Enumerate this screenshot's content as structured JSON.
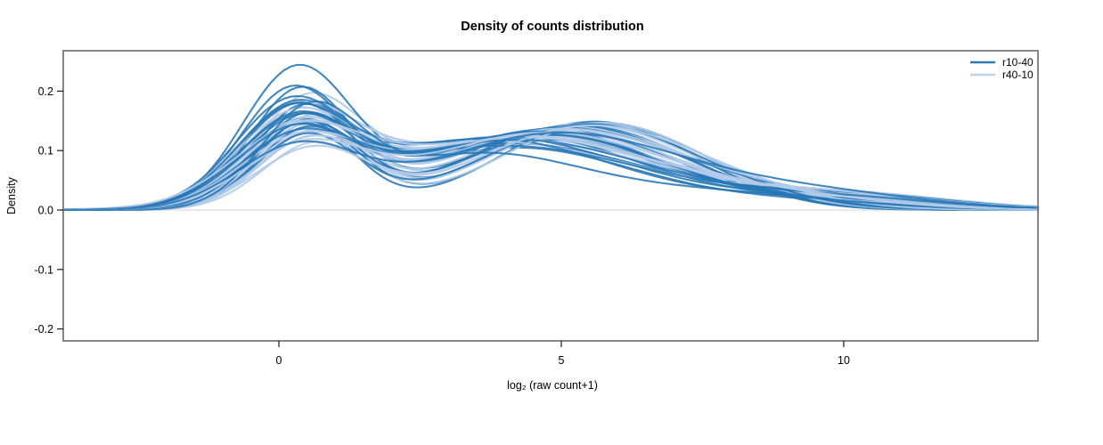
{
  "chart_data": {
    "type": "line",
    "subtype": "density-overlay",
    "title": "Density of counts distribution",
    "xlabel": "log2 (raw count+1)",
    "xlabel_display": "log₂ (raw count+1)",
    "ylabel": "Density",
    "xlim": [
      -3.82,
      13.44
    ],
    "ylim": [
      -0.22,
      0.268
    ],
    "x_ticks": [
      0,
      5,
      10
    ],
    "y_ticks": [
      0.2,
      0.1,
      0.0,
      -0.1,
      -0.2
    ],
    "grid": false,
    "zero_line": true,
    "zero_line_color": "#dcdcdc",
    "box_color": "#737373",
    "legend": {
      "position": "top-right",
      "entries": [
        {
          "label": "r10-40",
          "color": "#2b7ab8"
        },
        {
          "label": "r40-10",
          "color": "#bdd2ec"
        }
      ]
    },
    "series": [
      {
        "name": "r10-40",
        "color": "#2878b6",
        "opacity": 0.88,
        "line_width": 2.1,
        "curve_model": "sum of 3 gaussians [h1,c1,s1,h2,c2,s2,h3,c3,s3]",
        "curves": [
          [
            0.222,
            0.3,
            0.95,
            0.105,
            4.2,
            2.2,
            0.012,
            9.2,
            1.5
          ],
          [
            0.198,
            0.38,
            0.9,
            0.118,
            4.9,
            2.0,
            0.01,
            8.8,
            1.4
          ],
          [
            0.19,
            0.22,
            0.92,
            0.125,
            4.3,
            2.1,
            0.015,
            9.0,
            1.6
          ],
          [
            0.172,
            0.45,
            0.88,
            0.132,
            5.1,
            1.9,
            0.008,
            8.5,
            1.3
          ],
          [
            0.166,
            0.28,
            1.0,
            0.128,
            4.6,
            2.2,
            0.018,
            9.4,
            1.7
          ],
          [
            0.161,
            0.52,
            0.93,
            0.14,
            5.4,
            1.8,
            0.006,
            8.2,
            1.2
          ],
          [
            0.157,
            0.18,
            0.97,
            0.122,
            3.9,
            2.3,
            0.02,
            9.6,
            1.8
          ],
          [
            0.153,
            0.4,
            0.9,
            0.148,
            5.6,
            1.7,
            0.005,
            8.0,
            1.2
          ],
          [
            0.15,
            0.33,
            1.05,
            0.135,
            4.7,
            2.0,
            0.012,
            9.1,
            1.5
          ],
          [
            0.148,
            0.25,
            0.94,
            0.112,
            4.1,
            2.4,
            0.022,
            9.8,
            1.9
          ],
          [
            0.146,
            0.48,
            0.89,
            0.142,
            5.2,
            1.9,
            0.009,
            8.6,
            1.4
          ],
          [
            0.143,
            0.36,
            1.02,
            0.13,
            4.5,
            2.1,
            0.014,
            9.3,
            1.6
          ],
          [
            0.141,
            0.2,
            0.96,
            0.12,
            3.7,
            2.3,
            0.018,
            9.5,
            1.7
          ],
          [
            0.139,
            0.55,
            0.91,
            0.146,
            5.7,
            1.8,
            0.006,
            8.3,
            1.3
          ],
          [
            0.136,
            0.3,
            1.08,
            0.126,
            4.8,
            2.0,
            0.011,
            9.0,
            1.5
          ],
          [
            0.133,
            0.42,
            0.93,
            0.138,
            5.0,
            2.2,
            0.016,
            9.7,
            1.8
          ],
          [
            0.129,
            0.27,
            0.98,
            0.108,
            4.0,
            2.5,
            0.025,
            10.0,
            1.9
          ],
          [
            0.125,
            0.5,
            0.9,
            0.144,
            5.5,
            1.9,
            0.007,
            8.4,
            1.3
          ],
          [
            0.119,
            0.35,
            1.04,
            0.132,
            4.6,
            2.1,
            0.013,
            9.2,
            1.6
          ],
          [
            0.113,
            0.23,
            0.99,
            0.118,
            4.2,
            2.4,
            0.02,
            9.9,
            1.8
          ],
          [
            0.158,
            0.55,
            0.88,
            0.09,
            3.5,
            1.8,
            0.03,
            7.5,
            2.2
          ],
          [
            0.1,
            0.32,
            1.06,
            0.128,
            4.9,
            2.2,
            0.028,
            9.4,
            2.0
          ]
        ]
      },
      {
        "name": "r40-10",
        "color": "#b3cbe8",
        "opacity": 0.92,
        "line_width": 2.1,
        "curve_model": "sum of 3 gaussians [h1,c1,s1,h2,c2,s2,h3,c3,s3]",
        "curves": [
          [
            0.168,
            0.5,
            0.95,
            0.118,
            4.4,
            2.3,
            0.02,
            9.0,
            1.8
          ],
          [
            0.16,
            0.35,
            1.0,
            0.13,
            4.9,
            2.1,
            0.015,
            8.7,
            1.6
          ],
          [
            0.155,
            0.6,
            0.92,
            0.142,
            5.3,
            1.9,
            0.01,
            8.4,
            1.4
          ],
          [
            0.15,
            0.28,
            1.05,
            0.125,
            4.2,
            2.4,
            0.024,
            9.5,
            1.9
          ],
          [
            0.147,
            0.45,
            0.97,
            0.136,
            5.0,
            2.0,
            0.012,
            8.9,
            1.5
          ],
          [
            0.144,
            0.55,
            0.9,
            0.148,
            5.5,
            1.8,
            0.008,
            8.2,
            1.3
          ],
          [
            0.14,
            0.3,
            1.02,
            0.12,
            4.0,
            2.5,
            0.026,
            9.8,
            2.0
          ],
          [
            0.137,
            0.48,
            0.94,
            0.14,
            5.2,
            2.0,
            0.011,
            8.6,
            1.5
          ],
          [
            0.134,
            0.38,
            1.08,
            0.128,
            4.6,
            2.2,
            0.017,
            9.2,
            1.7
          ],
          [
            0.131,
            0.62,
            0.91,
            0.145,
            5.6,
            1.9,
            0.007,
            8.1,
            1.3
          ],
          [
            0.128,
            0.25,
            1.0,
            0.115,
            3.8,
            2.5,
            0.028,
            9.9,
            2.0
          ],
          [
            0.126,
            0.52,
            0.96,
            0.138,
            5.1,
            2.1,
            0.013,
            8.8,
            1.6
          ],
          [
            0.123,
            0.4,
            1.06,
            0.126,
            4.5,
            2.3,
            0.019,
            9.4,
            1.8
          ],
          [
            0.12,
            0.58,
            0.93,
            0.143,
            5.4,
            1.9,
            0.009,
            8.3,
            1.4
          ],
          [
            0.118,
            0.33,
            1.03,
            0.122,
            4.3,
            2.4,
            0.022,
            9.6,
            1.9
          ],
          [
            0.115,
            0.47,
            0.98,
            0.134,
            4.8,
            2.1,
            0.014,
            9.0,
            1.6
          ],
          [
            0.112,
            0.65,
            0.92,
            0.146,
            5.7,
            1.8,
            0.006,
            8.0,
            1.2
          ],
          [
            0.11,
            0.28,
            1.1,
            0.118,
            4.1,
            2.5,
            0.025,
            9.7,
            2.0
          ],
          [
            0.107,
            0.54,
            0.95,
            0.136,
            5.0,
            2.2,
            0.016,
            9.1,
            1.7
          ],
          [
            0.104,
            0.36,
            1.05,
            0.124,
            4.4,
            2.3,
            0.021,
            9.3,
            1.8
          ],
          [
            0.101,
            0.6,
            0.99,
            0.141,
            5.5,
            2.0,
            0.01,
            8.5,
            1.5
          ],
          [
            0.098,
            0.42,
            1.07,
            0.13,
            4.7,
            2.2,
            0.018,
            9.2,
            1.7
          ]
        ]
      }
    ]
  }
}
